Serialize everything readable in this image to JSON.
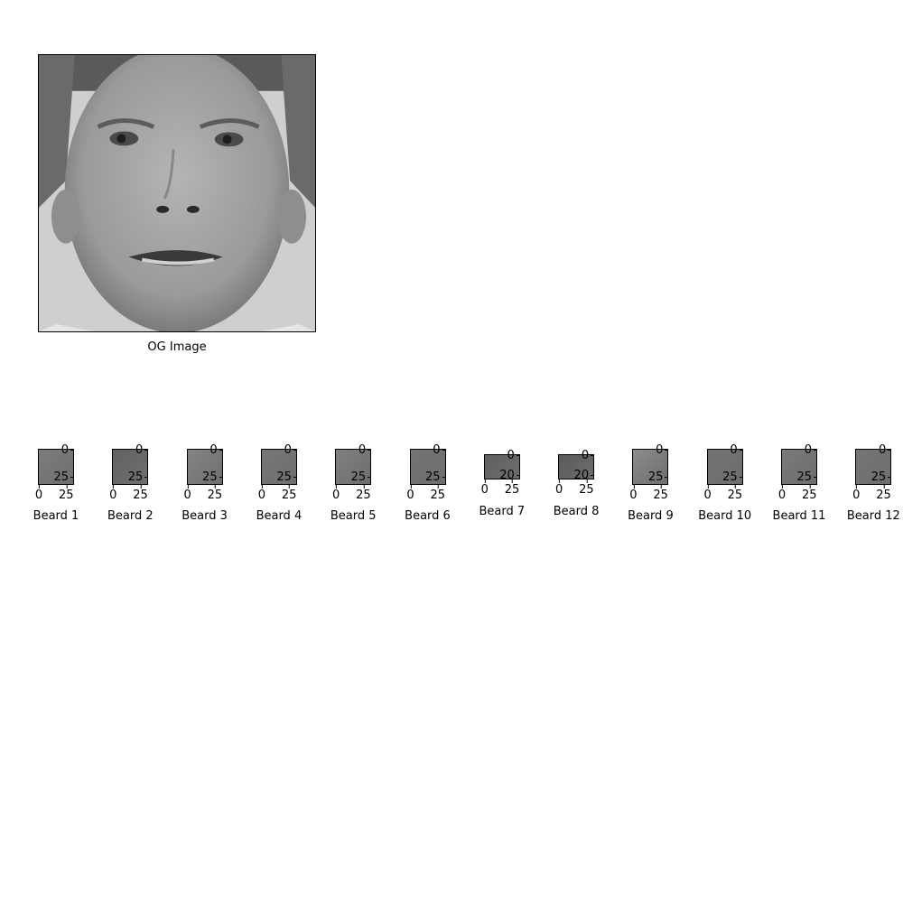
{
  "main": {
    "label": "OG Image",
    "image": "grayscale-face-photo"
  },
  "thumbs": [
    {
      "label": "Beard 1",
      "yticks": [
        "0",
        "25"
      ],
      "xticks": [
        "0",
        "25"
      ],
      "shade": "#7d7d7d"
    },
    {
      "label": "Beard 2",
      "yticks": [
        "0",
        "25"
      ],
      "xticks": [
        "0",
        "25"
      ],
      "shade": "#626262"
    },
    {
      "label": "Beard 3",
      "yticks": [
        "0",
        "25"
      ],
      "xticks": [
        "0",
        "25"
      ],
      "shade": "#858585"
    },
    {
      "label": "Beard 4",
      "yticks": [
        "0",
        "25"
      ],
      "xticks": [
        "0",
        "25"
      ],
      "shade": "#777777"
    },
    {
      "label": "Beard 5",
      "yticks": [
        "0",
        "25"
      ],
      "xticks": [
        "0",
        "25"
      ],
      "shade": "#808080"
    },
    {
      "label": "Beard 6",
      "yticks": [
        "0",
        "25"
      ],
      "xticks": [
        "0",
        "25"
      ],
      "shade": "#747474"
    },
    {
      "label": "Beard 7",
      "yticks": [
        "0",
        "20"
      ],
      "xticks": [
        "0",
        "25"
      ],
      "shade": "#5f5f5f"
    },
    {
      "label": "Beard 8",
      "yticks": [
        "0",
        "20"
      ],
      "xticks": [
        "0",
        "25"
      ],
      "shade": "#5a5a5a"
    },
    {
      "label": "Beard 9",
      "yticks": [
        "0",
        "25"
      ],
      "xticks": [
        "0",
        "25"
      ],
      "shade": "#8c8c8c"
    },
    {
      "label": "Beard 10",
      "yticks": [
        "0",
        "25"
      ],
      "xticks": [
        "0",
        "25"
      ],
      "shade": "#737373"
    },
    {
      "label": "Beard 11",
      "yticks": [
        "0",
        "25"
      ],
      "xticks": [
        "0",
        "25"
      ],
      "shade": "#7a7a7a"
    },
    {
      "label": "Beard 12",
      "yticks": [
        "0",
        "25"
      ],
      "xticks": [
        "0",
        "25"
      ],
      "shade": "#757575"
    }
  ]
}
